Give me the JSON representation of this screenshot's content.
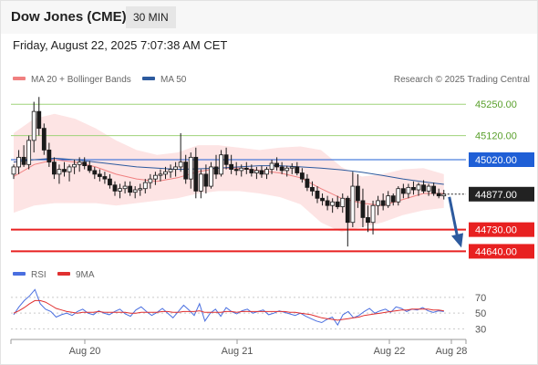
{
  "header": {
    "title": "Dow Jones (CME)",
    "interval": "30 MIN",
    "timestamp": "Friday, August 22, 2025 7:07:38 AM CET"
  },
  "legend": {
    "ma20_label": "MA 20 + Bollinger Bands",
    "ma50_label": "MA 50",
    "source": "Research © 2025 Trading Central",
    "rsi_label": "RSI",
    "rsi_ma_label": "9MA"
  },
  "colors": {
    "ma20": "#f08080",
    "ma50": "#2d5a9e",
    "resistance": "#9fd37a",
    "support": "#e82020",
    "pivot": "#1f5fd6",
    "last_price": "#222222",
    "arrow": "#2d5a9e",
    "rsi": "#4a6fe0",
    "rsi_ma": "#e03030",
    "candle_up": "#1a1a1a",
    "candle_down": "#1a1a1a"
  },
  "chart_data": [
    {
      "type": "candlestick",
      "title": "Dow Jones (CME)",
      "interval": "30 MIN",
      "x_ticks": [
        "Aug 20",
        "Aug 21",
        "Aug 22",
        "Aug 28"
      ],
      "y_range": [
        44600,
        45300
      ],
      "levels": [
        {
          "value": 45250.0,
          "label": "45250.00",
          "kind": "resistance"
        },
        {
          "value": 45120.0,
          "label": "45120.00",
          "kind": "resistance"
        },
        {
          "value": 45020.0,
          "label": "45020.00",
          "kind": "pivot"
        },
        {
          "value": 44877.0,
          "label": "44877.00",
          "kind": "last"
        },
        {
          "value": 44730.0,
          "label": "44730.00",
          "kind": "support"
        },
        {
          "value": 44640.0,
          "label": "44640.00",
          "kind": "support"
        }
      ],
      "projection": {
        "from": 44877.0,
        "to": 44640.0,
        "direction": "down"
      },
      "ma50": [
        45010,
        45020,
        45026,
        45020,
        45010,
        45000,
        44990,
        44985,
        44980,
        44982,
        44985,
        44990,
        44995,
        44995,
        44990,
        44985,
        44978,
        44968,
        44955,
        44940,
        44928,
        44918
      ],
      "ma20": [
        44950,
        45000,
        45020,
        45010,
        44990,
        44960,
        44940,
        44930,
        44945,
        44970,
        44985,
        44985,
        44975,
        44965,
        44945,
        44900,
        44860,
        44840,
        44830,
        44855,
        44880,
        44880
      ],
      "bb_upper": [
        45130,
        45190,
        45210,
        45190,
        45150,
        45100,
        45060,
        45040,
        45050,
        45080,
        45080,
        45070,
        45060,
        45070,
        45075,
        45060,
        44990,
        44950,
        44960,
        44980,
        44985,
        44960
      ],
      "bb_lower": [
        44800,
        44830,
        44840,
        44840,
        44840,
        44830,
        44840,
        44850,
        44860,
        44880,
        44890,
        44890,
        44880,
        44865,
        44835,
        44760,
        44720,
        44740,
        44760,
        44790,
        44810,
        44820
      ],
      "candles": [
        [
          44960,
          45000,
          44940,
          44990
        ],
        [
          44990,
          45060,
          44960,
          45030
        ],
        [
          45030,
          45080,
          44990,
          45000
        ],
        [
          45000,
          45120,
          44980,
          45100
        ],
        [
          45100,
          45260,
          45050,
          45220
        ],
        [
          45220,
          45280,
          45120,
          45150
        ],
        [
          45150,
          45170,
          45040,
          45060
        ],
        [
          45060,
          45090,
          44990,
          45010
        ],
        [
          45010,
          45030,
          44940,
          44960
        ],
        [
          44960,
          45000,
          44920,
          44980
        ],
        [
          44980,
          45010,
          44950,
          44970
        ],
        [
          44970,
          45000,
          44930,
          44990
        ],
        [
          44990,
          45020,
          44960,
          45000
        ],
        [
          45000,
          45030,
          44970,
          45010
        ],
        [
          45010,
          45030,
          44980,
          44995
        ],
        [
          44995,
          45015,
          44965,
          44975
        ],
        [
          44975,
          44990,
          44940,
          44960
        ],
        [
          44960,
          44980,
          44930,
          44950
        ],
        [
          44950,
          44970,
          44920,
          44940
        ],
        [
          44940,
          44960,
          44900,
          44915
        ],
        [
          44915,
          44930,
          44870,
          44890
        ],
        [
          44890,
          44920,
          44860,
          44900
        ],
        [
          44900,
          44930,
          44880,
          44910
        ],
        [
          44910,
          44930,
          44870,
          44885
        ],
        [
          44885,
          44910,
          44860,
          44895
        ],
        [
          44895,
          44920,
          44870,
          44900
        ],
        [
          44900,
          44940,
          44880,
          44925
        ],
        [
          44925,
          44960,
          44900,
          44940
        ],
        [
          44940,
          44970,
          44915,
          44955
        ],
        [
          44955,
          44980,
          44930,
          44960
        ],
        [
          44960,
          44990,
          44940,
          44970
        ],
        [
          44970,
          45000,
          44945,
          44980
        ],
        [
          44980,
          45010,
          44950,
          44990
        ],
        [
          44990,
          45130,
          44970,
          45010
        ],
        [
          45010,
          45040,
          44920,
          44940
        ],
        [
          44940,
          45050,
          44900,
          45030
        ],
        [
          45030,
          45070,
          44860,
          44890
        ],
        [
          44890,
          44980,
          44860,
          44960
        ],
        [
          44960,
          45000,
          44880,
          44910
        ],
        [
          44910,
          45010,
          44900,
          44990
        ],
        [
          44990,
          45040,
          44940,
          44960
        ],
        [
          44960,
          45060,
          44950,
          45040
        ],
        [
          45040,
          45070,
          44980,
          45000
        ],
        [
          45000,
          45040,
          44960,
          44980
        ],
        [
          44980,
          45010,
          44955,
          44975
        ],
        [
          44975,
          45000,
          44950,
          44985
        ],
        [
          44985,
          45010,
          44960,
          44980
        ],
        [
          44980,
          45000,
          44950,
          44965
        ],
        [
          44965,
          44990,
          44940,
          44975
        ],
        [
          44975,
          44995,
          44945,
          44960
        ],
        [
          44960,
          44990,
          44940,
          44980
        ],
        [
          44980,
          45020,
          44960,
          45005
        ],
        [
          45005,
          45030,
          44975,
          44990
        ],
        [
          44990,
          45010,
          44960,
          44975
        ],
        [
          44975,
          44995,
          44950,
          44985
        ],
        [
          44985,
          45005,
          44960,
          44990
        ],
        [
          44990,
          45010,
          44955,
          44965
        ],
        [
          44965,
          44985,
          44925,
          44940
        ],
        [
          44940,
          44960,
          44890,
          44905
        ],
        [
          44905,
          44930,
          44870,
          44890
        ],
        [
          44890,
          44910,
          44840,
          44860
        ],
        [
          44860,
          44880,
          44830,
          44850
        ],
        [
          44850,
          44870,
          44810,
          44830
        ],
        [
          44830,
          44860,
          44800,
          44845
        ],
        [
          44845,
          44870,
          44815,
          44825
        ],
        [
          44825,
          44880,
          44800,
          44860
        ],
        [
          44860,
          44870,
          44660,
          44760
        ],
        [
          44760,
          44970,
          44740,
          44910
        ],
        [
          44910,
          44960,
          44820,
          44850
        ],
        [
          44850,
          44900,
          44740,
          44780
        ],
        [
          44780,
          44830,
          44720,
          44760
        ],
        [
          44760,
          44850,
          44710,
          44830
        ],
        [
          44830,
          44870,
          44790,
          44850
        ],
        [
          44850,
          44880,
          44810,
          44830
        ],
        [
          44830,
          44890,
          44820,
          44870
        ],
        [
          44870,
          44880,
          44830,
          44845
        ],
        [
          44845,
          44910,
          44830,
          44900
        ],
        [
          44900,
          44920,
          44860,
          44880
        ],
        [
          44880,
          44920,
          44860,
          44905
        ],
        [
          44905,
          44930,
          44875,
          44895
        ],
        [
          44895,
          44925,
          44870,
          44915
        ],
        [
          44915,
          44935,
          44880,
          44890
        ],
        [
          44890,
          44920,
          44870,
          44910
        ],
        [
          44910,
          44925,
          44870,
          44880
        ],
        [
          44880,
          44900,
          44860,
          44870
        ],
        [
          44870,
          44895,
          44855,
          44877
        ]
      ]
    },
    {
      "type": "line",
      "title": "RSI",
      "x_ticks": [
        "Aug 20",
        "Aug 21",
        "Aug 22",
        "Aug 28"
      ],
      "y_ticks": [
        70,
        50,
        30
      ],
      "ylim": [
        20,
        85
      ],
      "series": [
        {
          "name": "RSI",
          "values": [
            48,
            58,
            66,
            72,
            80,
            62,
            55,
            52,
            45,
            48,
            50,
            47,
            52,
            55,
            50,
            48,
            53,
            50,
            48,
            52,
            55,
            49,
            46,
            54,
            58,
            52,
            47,
            51,
            56,
            50,
            44,
            52,
            60,
            54,
            47,
            62,
            40,
            50,
            55,
            46,
            57,
            52,
            49,
            53,
            55,
            50,
            52,
            54,
            48,
            50,
            53,
            51,
            49,
            47,
            50,
            46,
            43,
            40,
            38,
            42,
            45,
            35,
            48,
            52,
            44,
            47,
            52,
            56,
            50,
            53,
            55,
            51,
            58,
            56,
            52,
            55,
            54,
            57,
            53,
            51,
            53,
            52
          ]
        },
        {
          "name": "9MA",
          "values": [
            50,
            53,
            57,
            62,
            66,
            66,
            64,
            60,
            56,
            54,
            52,
            51,
            50,
            51,
            51,
            51,
            52,
            51,
            51,
            51,
            51,
            51,
            50,
            50,
            51,
            51,
            51,
            51,
            52,
            52,
            51,
            51,
            52,
            52,
            52,
            53,
            51,
            51,
            51,
            51,
            52,
            52,
            51,
            52,
            52,
            52,
            52,
            52,
            52,
            52,
            52,
            52,
            51,
            51,
            50,
            49,
            48,
            46,
            44,
            43,
            42,
            41,
            42,
            43,
            44,
            45,
            47,
            48,
            49,
            50,
            51,
            52,
            53,
            54,
            54,
            55,
            55,
            55,
            55,
            54,
            54,
            53
          ]
        }
      ]
    }
  ]
}
